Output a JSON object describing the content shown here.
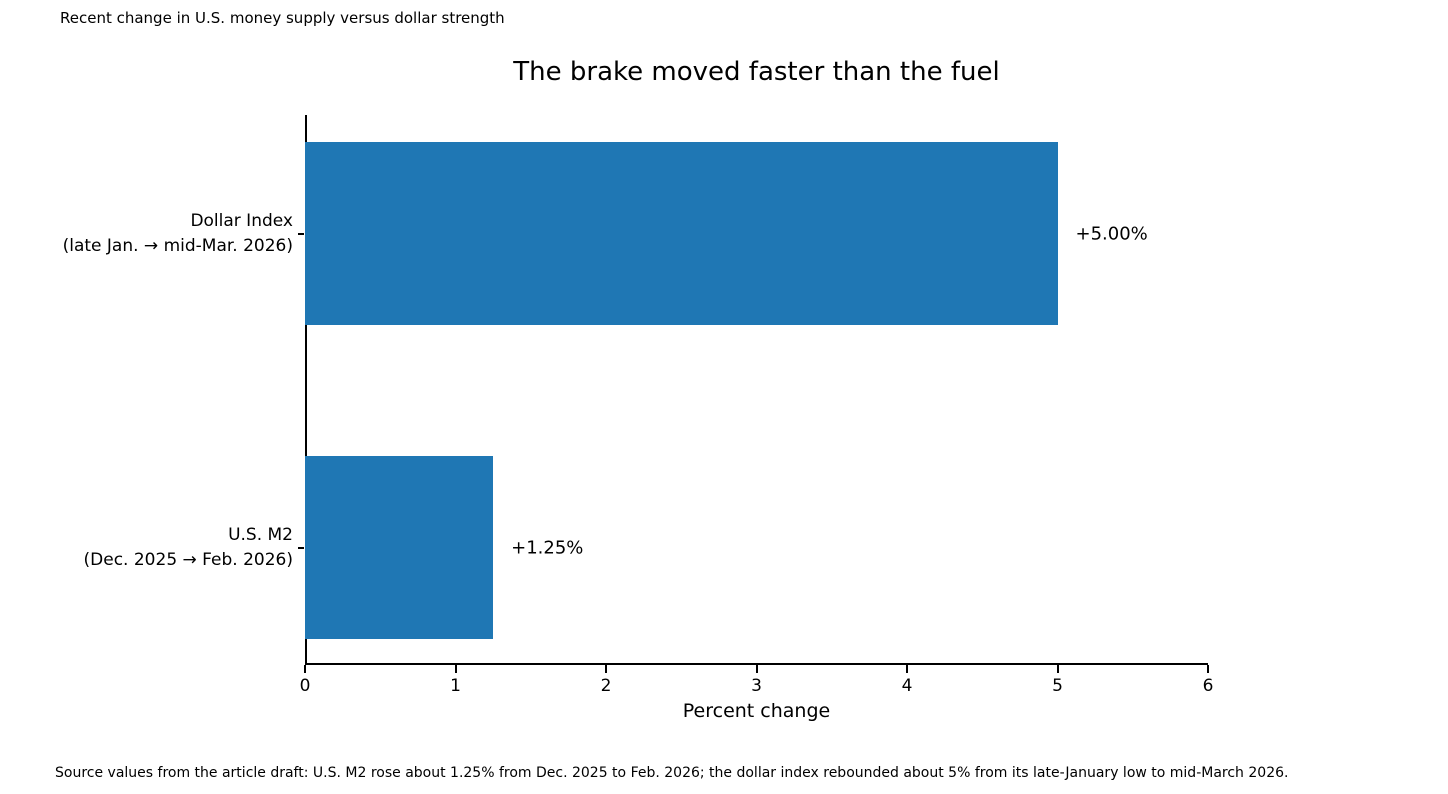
{
  "colors": {
    "bar": "#1f77b4",
    "text": "#000000",
    "spine": "#000000",
    "background": "#ffffff"
  },
  "header": {
    "note": "Recent change in U.S. money supply versus dollar strength"
  },
  "chart_data": {
    "type": "bar",
    "orientation": "horizontal",
    "title": "The brake moved faster than the fuel",
    "categories": [
      "Dollar Index (late Jan. → mid-Mar. 2026)",
      "U.S. M2 (Dec. 2025 → Feb. 2026)"
    ],
    "category_lines": [
      [
        "Dollar Index",
        "(late Jan. → mid-Mar. 2026)"
      ],
      [
        "U.S. M2",
        "(Dec. 2025 → Feb. 2026)"
      ]
    ],
    "values": [
      5.0,
      1.25
    ],
    "value_labels": [
      "+5.00%",
      "+1.25%"
    ],
    "xlabel": "Percent change",
    "xlim": [
      0,
      6
    ],
    "xticks": [
      "0",
      "1",
      "2",
      "3",
      "4",
      "5",
      "6"
    ],
    "grid": false,
    "legend": "none",
    "bar_color": "#1f77b4"
  },
  "footer": {
    "source": "Source values from the article draft: U.S. M2 rose about 1.25% from Dec. 2025 to Feb. 2026; the dollar index rebounded about 5% from its late-January low to mid-March 2026."
  }
}
